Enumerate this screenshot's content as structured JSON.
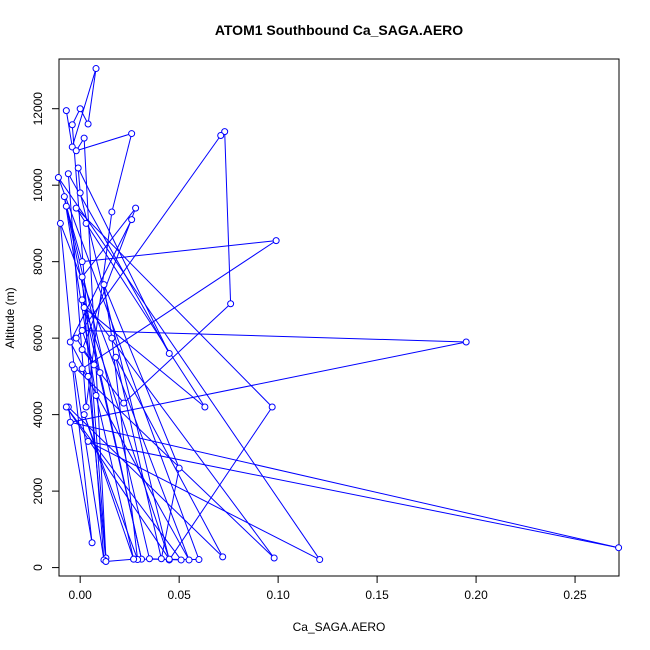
{
  "chart_data": {
    "type": "line",
    "title": "ATOM1 Southbound Ca_SAGA.AERO",
    "xlabel": "Ca_SAGA.AERO",
    "ylabel": "Altitude (m)",
    "xlim": [
      -0.0107,
      0.2722
    ],
    "ylim": [
      -220,
      13300
    ],
    "x_ticks": [
      0.0,
      0.05,
      0.1,
      0.15,
      0.2,
      0.25
    ],
    "x_tick_labels": [
      "0.00",
      "0.05",
      "0.10",
      "0.15",
      "0.20",
      "0.25"
    ],
    "y_ticks": [
      0,
      2000,
      4000,
      6000,
      8000,
      10000,
      12000
    ],
    "y_tick_labels": [
      "0",
      "2000",
      "4000",
      "6000",
      "8000",
      "10000",
      "12000"
    ],
    "grid": false,
    "series": [
      {
        "color": "#0000ff",
        "marker": "open-circle",
        "x": [
          -0.007,
          -0.004,
          0.008,
          0.004,
          0.0,
          -0.004,
          0.013,
          0.002,
          -0.002,
          0.026,
          0.016,
          0.003,
          -0.006,
          0.045,
          -0.001,
          0.0,
          0.045,
          0.097,
          -0.002,
          0.003,
          0.063,
          0.002,
          0.031,
          0.01,
          -0.007,
          0.001,
          0.099,
          0.001,
          0.055,
          -0.01,
          -0.003,
          0.012,
          0.001,
          0.028,
          0.001,
          0.022,
          0.076,
          0.073,
          0.071,
          -0.002,
          0.007,
          0.001,
          0.195,
          -0.005,
          0.272,
          0.004,
          0.121,
          -0.011,
          0.06,
          0.027,
          0.002,
          0.029,
          0.016,
          0.012,
          0.05,
          0.041,
          0.018,
          0.072,
          -0.006,
          0.006,
          -0.004,
          0.098,
          0.001,
          0.045,
          -0.007,
          0.051,
          0.035,
          -0.008,
          0.008,
          0.027,
          0.013,
          0.004,
          -0.005,
          0.026
        ],
        "y": [
          11950,
          11000,
          13050,
          11600,
          12000,
          11580,
          250,
          11230,
          10900,
          11350,
          9300,
          4200,
          10300,
          5600,
          10450,
          9800,
          200,
          4200,
          9400,
          9000,
          4200,
          6800,
          220,
          5100,
          9450,
          8000,
          8550,
          5200,
          200,
          9000,
          5200,
          200,
          7600,
          9400,
          5700,
          4300,
          6900,
          11400,
          11300,
          6000,
          5300,
          6200,
          5900,
          3800,
          520,
          3300,
          210,
          10200,
          210,
          220,
          4000,
          210,
          6000,
          7400,
          2600,
          230,
          5500,
          280,
          4200,
          650,
          5300,
          250,
          7000,
          220,
          4200,
          200,
          230,
          9700,
          4500,
          220,
          160,
          5000,
          5900,
          9100
        ]
      }
    ]
  }
}
